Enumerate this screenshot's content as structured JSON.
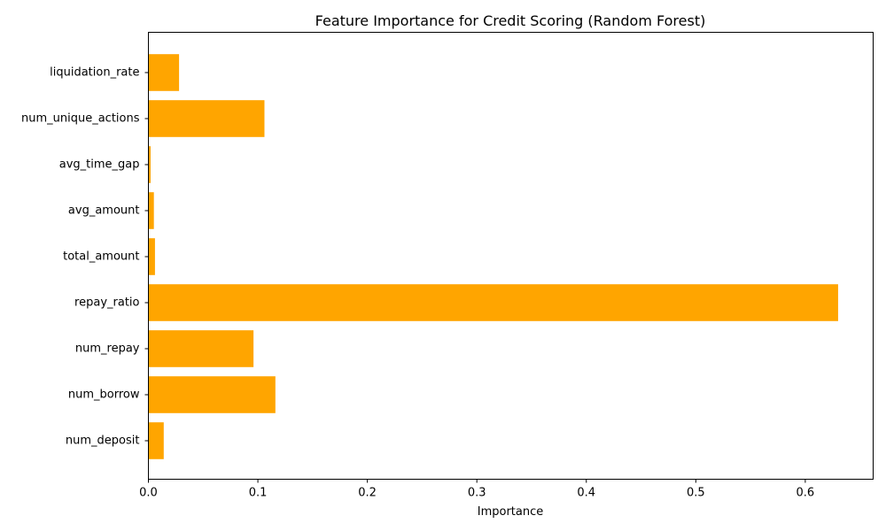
{
  "chart_data": {
    "type": "bar",
    "orientation": "horizontal",
    "title": "Feature Importance for Credit Scoring (Random Forest)",
    "xlabel": "Importance",
    "ylabel": "",
    "categories": [
      "num_deposit",
      "num_borrow",
      "num_repay",
      "repay_ratio",
      "total_amount",
      "avg_amount",
      "avg_time_gap",
      "num_unique_actions",
      "liquidation_rate"
    ],
    "values": [
      0.014,
      0.116,
      0.096,
      0.63,
      0.006,
      0.005,
      0.002,
      0.106,
      0.028
    ],
    "xlim": [
      0,
      0.662
    ],
    "xticks": [
      0.0,
      0.1,
      0.2,
      0.3,
      0.4,
      0.5,
      0.6
    ],
    "xtick_labels": [
      "0.0",
      "0.1",
      "0.2",
      "0.3",
      "0.4",
      "0.5",
      "0.6"
    ],
    "bar_color": "#ffa500",
    "grid": false,
    "legend": "none"
  }
}
